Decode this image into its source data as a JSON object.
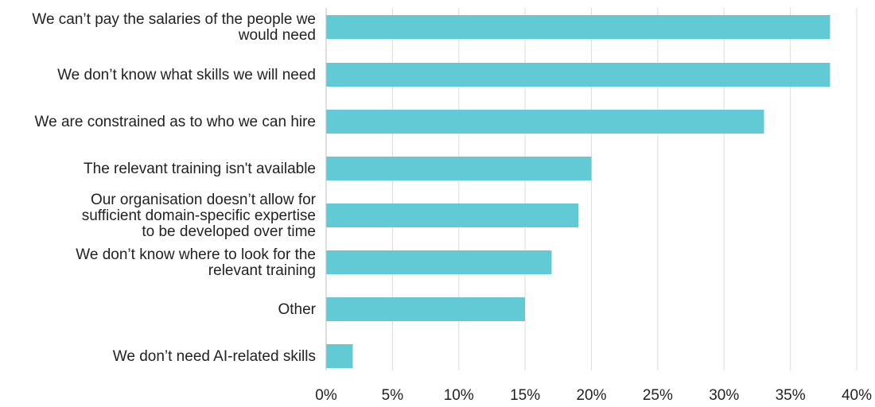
{
  "chart_data": {
    "type": "bar",
    "orientation": "horizontal",
    "categories": [
      "We can’t pay the salaries of the people we would need",
      "We don’t know what skills we will need",
      "We are constrained as to who we can hire",
      "The relevant training isn't available",
      "Our organisation doesn’t allow for sufficient domain-specific expertise to be developed over time",
      "We don’t know where to look for the relevant training",
      "Other",
      "We don’t need AI-related skills"
    ],
    "category_lines": [
      [
        "We can’t pay the salaries of the people we",
        "would need"
      ],
      [
        "We don’t know what skills we will need"
      ],
      [
        "We are constrained as to who we can hire"
      ],
      [
        "The relevant training isn't available"
      ],
      [
        "Our organisation doesn’t allow for",
        "sufficient domain-specific expertise",
        "to be developed over time"
      ],
      [
        "We don’t know where to look for the",
        "relevant training"
      ],
      [
        "Other"
      ],
      [
        "We don’t need AI-related skills"
      ]
    ],
    "values": [
      38,
      38,
      33,
      20,
      19,
      17,
      15,
      2
    ],
    "xticks": [
      "0%",
      "5%",
      "10%",
      "15%",
      "20%",
      "25%",
      "30%",
      "35%",
      "40%"
    ],
    "xlim": [
      0,
      40
    ],
    "grid": true,
    "bar_color": "#62cad5",
    "title": "",
    "xlabel": "",
    "ylabel": ""
  }
}
